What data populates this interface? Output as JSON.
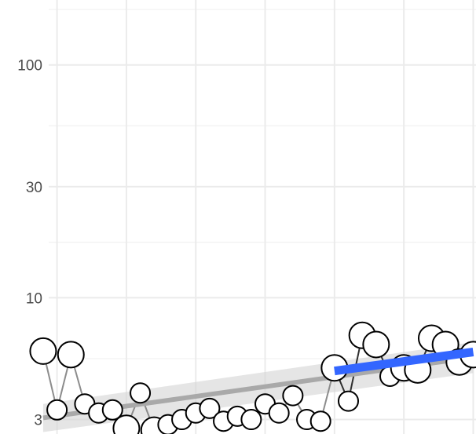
{
  "chart_data": {
    "type": "scatter",
    "title": "",
    "xlabel": "",
    "ylabel": "",
    "y_scale": "log10",
    "ylim": [
      2.6,
      190
    ],
    "xlim": [
      -0.6,
      30.2
    ],
    "grid": true,
    "y_ticks": [
      {
        "value": 3,
        "label": "3"
      },
      {
        "value": 10,
        "label": "10"
      },
      {
        "value": 30,
        "label": "30"
      },
      {
        "value": 100,
        "label": "100"
      }
    ],
    "y_minor_ticks": [
      5.48,
      17.3,
      54.8,
      173
    ],
    "x_gridlines": [
      0,
      5,
      10,
      15,
      20,
      25,
      30
    ],
    "series": [
      {
        "kind": "observed",
        "color": "#000000",
        "x": [
          -1,
          0,
          1,
          2,
          3,
          4,
          5,
          6,
          7,
          8,
          9,
          10,
          11,
          12,
          13,
          14,
          15,
          16,
          17,
          18,
          19,
          20,
          21,
          22,
          23,
          24,
          25,
          26,
          27,
          28,
          29,
          30
        ],
        "y": [
          5.9,
          3.3,
          5.7,
          3.5,
          3.2,
          3.3,
          2.75,
          3.9,
          2.7,
          2.85,
          3.0,
          3.2,
          3.35,
          2.95,
          3.1,
          3.0,
          3.5,
          3.2,
          3.8,
          3.0,
          2.95,
          5.0,
          3.6,
          6.9,
          6.3,
          4.6,
          5.0,
          4.9,
          6.7,
          6.3,
          5.3,
          5.7
        ]
      },
      {
        "kind": "trend",
        "color": "#a9a9a9",
        "x": [
          -1,
          30
        ],
        "y": [
          3.05,
          5.55
        ],
        "band_lower": [
          2.65,
          4.75
        ],
        "band_upper": [
          3.5,
          6.45
        ]
      },
      {
        "kind": "trend",
        "color": "#3366ff",
        "x": [
          20,
          30
        ],
        "y": [
          4.85,
          5.85
        ]
      }
    ]
  }
}
